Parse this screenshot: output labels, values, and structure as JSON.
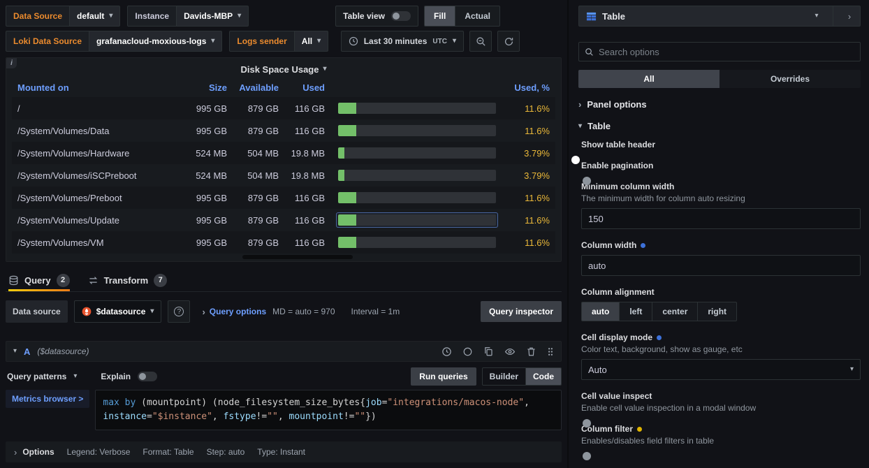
{
  "colors": {
    "accent_blue": "#3d71d9",
    "link_blue": "#6e9fff",
    "gauge_green": "#73bf69",
    "percent_yellow": "#eab839",
    "variable_label_orange": "#eb8b2e"
  },
  "icons": {
    "chevron_down": "▾",
    "chevron_right": "›",
    "info": "i"
  },
  "toolbar": {
    "datasource_label": "Data Source",
    "datasource_value": "default",
    "instance_label": "Instance",
    "instance_value": "Davids-MBP",
    "table_view_label": "Table view",
    "fill_label": "Fill",
    "actual_label": "Actual",
    "loki_label": "Loki Data Source",
    "loki_value": "grafanacloud-moxious-logs",
    "logs_sender_label": "Logs sender",
    "logs_sender_value": "All",
    "time_range": "Last 30 minutes",
    "timezone": "UTC"
  },
  "panel": {
    "title": "Disk Space Usage",
    "table": {
      "columns": [
        "Mounted on",
        "Size",
        "Available",
        "Used",
        "Used, %"
      ],
      "rows": [
        {
          "mount": "/",
          "size": "995 GB",
          "available": "879 GB",
          "used": "116 GB",
          "used_pct": "11.6%",
          "pct": 11.6
        },
        {
          "mount": "/System/Volumes/Data",
          "size": "995 GB",
          "available": "879 GB",
          "used": "116 GB",
          "used_pct": "11.6%",
          "pct": 11.6
        },
        {
          "mount": "/System/Volumes/Hardware",
          "size": "524 MB",
          "available": "504 MB",
          "used": "19.8 MB",
          "used_pct": "3.79%",
          "pct": 3.79
        },
        {
          "mount": "/System/Volumes/iSCPreboot",
          "size": "524 MB",
          "available": "504 MB",
          "used": "19.8 MB",
          "used_pct": "3.79%",
          "pct": 3.79
        },
        {
          "mount": "/System/Volumes/Preboot",
          "size": "995 GB",
          "available": "879 GB",
          "used": "116 GB",
          "used_pct": "11.6%",
          "pct": 11.6
        },
        {
          "mount": "/System/Volumes/Update",
          "size": "995 GB",
          "available": "879 GB",
          "used": "116 GB",
          "used_pct": "11.6%",
          "pct": 11.6,
          "highlight": true
        },
        {
          "mount": "/System/Volumes/VM",
          "size": "995 GB",
          "available": "879 GB",
          "used": "116 GB",
          "used_pct": "11.6%",
          "pct": 11.6
        }
      ]
    }
  },
  "tabs": {
    "query_label": "Query",
    "query_count": "2",
    "transform_label": "Transform",
    "transform_count": "7"
  },
  "query": {
    "datasource_field_label": "Data source",
    "datasource_value": "$datasource",
    "query_options_label": "Query options",
    "query_options_md": "MD = auto = 970",
    "query_options_interval": "Interval = 1m",
    "inspector_label": "Query inspector",
    "ref_id": "A",
    "ref_note": "($datasource)",
    "patterns_label": "Query patterns",
    "explain_label": "Explain",
    "run_label": "Run queries",
    "builder_label": "Builder",
    "code_label": "Code",
    "metrics_browser_label": "Metrics browser >",
    "code_lines": [
      [
        {
          "t": "kw",
          "x": "max by "
        },
        {
          "t": "pl",
          "x": "(mountpoint) (node_filesystem_size_bytes{"
        },
        {
          "t": "lbl",
          "x": "job"
        },
        {
          "t": "pl",
          "x": "="
        },
        {
          "t": "str",
          "x": "\"integrations/macos-node\""
        },
        {
          "t": "pl",
          "x": ","
        }
      ],
      [
        {
          "t": "lbl",
          "x": "instance"
        },
        {
          "t": "pl",
          "x": "="
        },
        {
          "t": "str",
          "x": "\"$instance\""
        },
        {
          "t": "pl",
          "x": ", "
        },
        {
          "t": "lbl",
          "x": "fstype"
        },
        {
          "t": "pl",
          "x": "!="
        },
        {
          "t": "str",
          "x": "\"\""
        },
        {
          "t": "pl",
          "x": ", "
        },
        {
          "t": "lbl",
          "x": "mountpoint"
        },
        {
          "t": "pl",
          "x": "!="
        },
        {
          "t": "str",
          "x": "\"\""
        },
        {
          "t": "pl",
          "x": "})"
        }
      ]
    ],
    "options_label": "Options",
    "options_meta": [
      "Legend: Verbose",
      "Format: Table",
      "Step: auto",
      "Type: Instant"
    ]
  },
  "sidebar": {
    "title": "Table",
    "search_placeholder": "Search options",
    "tab_all": "All",
    "tab_overrides": "Overrides",
    "section_panel_options": "Panel options",
    "section_table": "Table",
    "show_table_header": {
      "label": "Show table header",
      "on": true
    },
    "enable_pagination": {
      "label": "Enable pagination",
      "on": false
    },
    "min_col_width": {
      "label": "Minimum column width",
      "desc": "The minimum width for column auto resizing",
      "value": "150"
    },
    "col_width": {
      "label": "Column width",
      "value": "auto"
    },
    "col_align": {
      "label": "Column alignment",
      "options": [
        "auto",
        "left",
        "center",
        "right"
      ],
      "selected": "auto"
    },
    "cell_display": {
      "label": "Cell display mode",
      "desc": "Color text, background, show as gauge, etc",
      "value": "Auto"
    },
    "cell_inspect": {
      "label": "Cell value inspect",
      "desc": "Enable cell value inspection in a modal window",
      "on": false
    },
    "col_filter": {
      "label": "Column filter",
      "desc": "Enables/disables field filters in table",
      "on": false
    }
  }
}
